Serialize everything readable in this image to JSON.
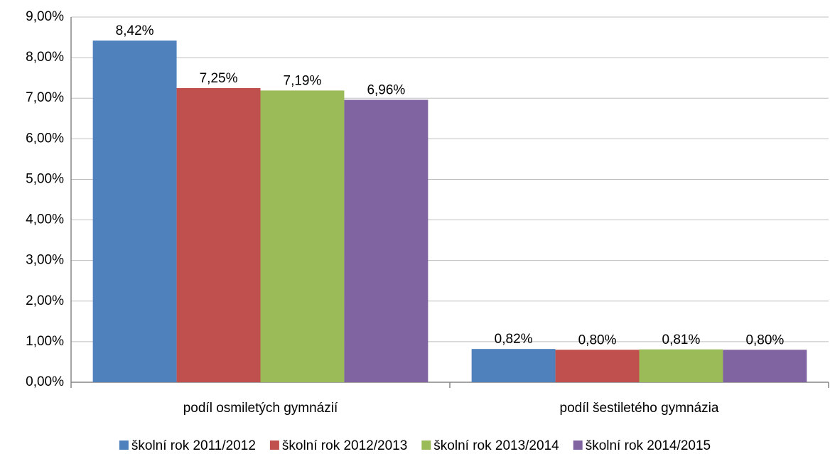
{
  "chart_data": {
    "type": "bar",
    "categories": [
      "podíl osmiletých gymnázií",
      "podíl šestiletého gymnázia"
    ],
    "series": [
      {
        "name": "školní rok 2011/2012",
        "color": "#4f81bd",
        "values": [
          8.42,
          0.82
        ],
        "value_labels": [
          "8,42%",
          "0,82%"
        ]
      },
      {
        "name": "školní rok 2012/2013",
        "color": "#c0504d",
        "values": [
          7.25,
          0.8
        ],
        "value_labels": [
          "7,25%",
          "0,80%"
        ]
      },
      {
        "name": "školní rok 2013/2014",
        "color": "#9bbb59",
        "values": [
          7.19,
          0.81
        ],
        "value_labels": [
          "7,19%",
          "0,81%"
        ]
      },
      {
        "name": "školní rok 2014/2015",
        "color": "#8064a2",
        "values": [
          6.96,
          0.8
        ],
        "value_labels": [
          "6,96%",
          "0,80%"
        ]
      }
    ],
    "ylim": [
      0,
      9
    ],
    "yticks": [
      {
        "value": 0,
        "label": "0,00%"
      },
      {
        "value": 1,
        "label": "1,00%"
      },
      {
        "value": 2,
        "label": "2,00%"
      },
      {
        "value": 3,
        "label": "3,00%"
      },
      {
        "value": 4,
        "label": "4,00%"
      },
      {
        "value": 5,
        "label": "5,00%"
      },
      {
        "value": 6,
        "label": "6,00%"
      },
      {
        "value": 7,
        "label": "7,00%"
      },
      {
        "value": 8,
        "label": "8,00%"
      },
      {
        "value": 9,
        "label": "9,00%"
      }
    ],
    "grid": true,
    "legend": "bottom"
  }
}
